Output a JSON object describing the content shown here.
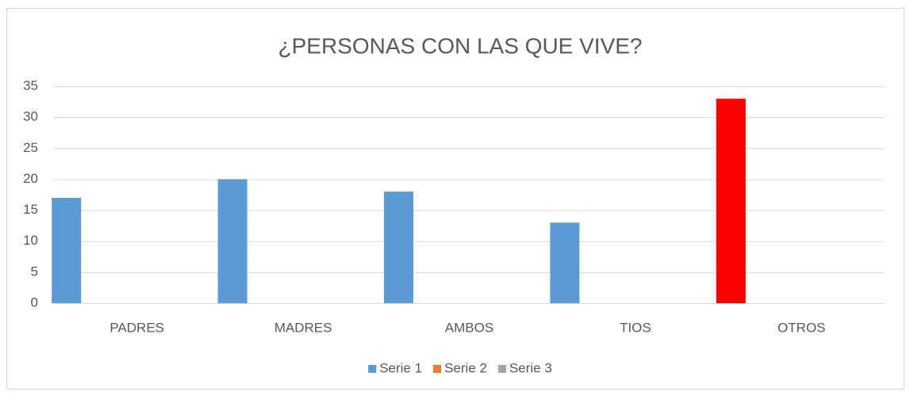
{
  "chart_data": {
    "type": "bar",
    "title": "¿PERSONAS CON LAS QUE VIVE?",
    "categories": [
      "PADRES",
      "MADRES",
      "AMBOS",
      "TIOS",
      "OTROS"
    ],
    "series": [
      {
        "name": "Serie 1",
        "color": "#5b9bd5",
        "colors": [
          "#5b9bd5",
          "#5b9bd5",
          "#5b9bd5",
          "#5b9bd5",
          "#ff0000"
        ],
        "values": [
          17,
          20,
          18,
          13,
          33
        ]
      },
      {
        "name": "Serie 2",
        "color": "#ed7d31",
        "values": [
          null,
          null,
          null,
          null,
          null
        ]
      },
      {
        "name": "Serie 3",
        "color": "#a5a5a5",
        "values": [
          null,
          null,
          null,
          null,
          null
        ]
      }
    ],
    "ylim": [
      0,
      35
    ],
    "yticks": [
      0,
      5,
      10,
      15,
      20,
      25,
      30,
      35
    ],
    "grid": true,
    "legend": "bottom"
  }
}
